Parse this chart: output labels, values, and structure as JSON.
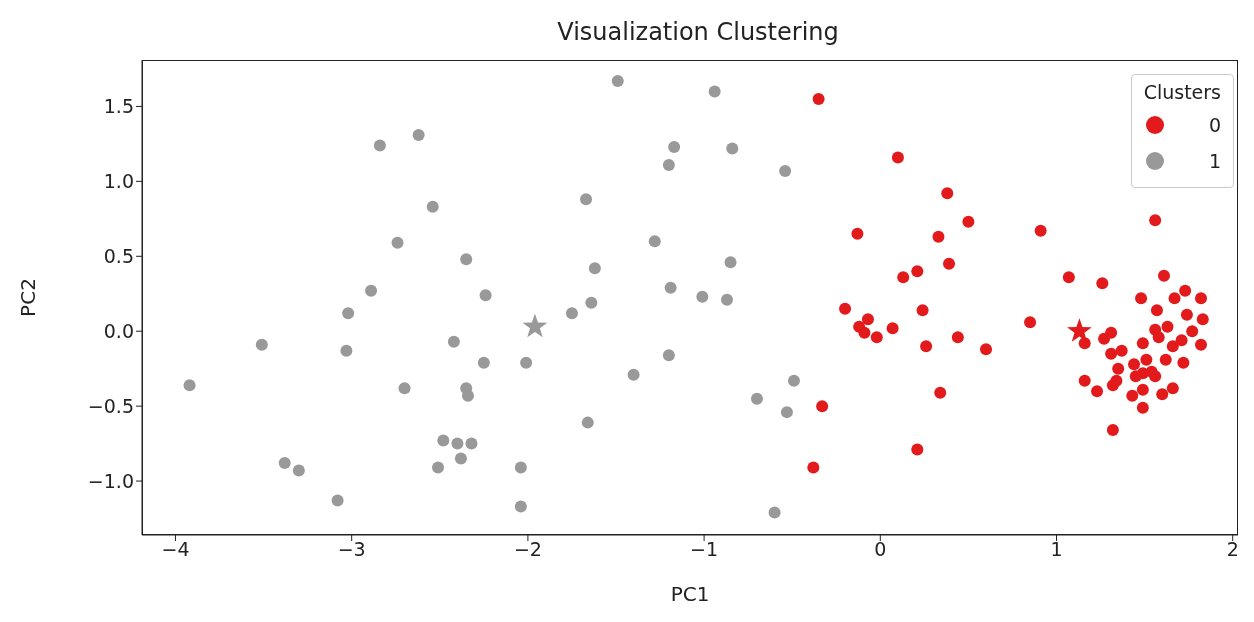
{
  "chart_data": {
    "type": "scatter",
    "title": "Visualization Clustering",
    "xlabel": "PC1",
    "ylabel": "PC2",
    "legend_title": "Clusters",
    "legend": "top right",
    "grid": false,
    "marker": "circle",
    "xlim": [
      -4.19,
      2.03
    ],
    "xticks": [
      {
        "value": -4,
        "label": "−4"
      },
      {
        "value": -3,
        "label": "−3"
      },
      {
        "value": -2,
        "label": "−2"
      },
      {
        "value": -1,
        "label": "−1"
      },
      0,
      1,
      2
    ],
    "ylim": [
      -1.36,
      1.81
    ],
    "yticks": [
      {
        "value": -1,
        "label": "−1.0"
      },
      {
        "value": -0.5,
        "label": "−0.5"
      },
      {
        "value": 0,
        "label": "0.0"
      },
      0.5,
      {
        "value": 1,
        "label": "1.0"
      },
      1.5
    ],
    "series": [
      {
        "name": "0",
        "color": "#e31a1c",
        "x": [
          -0.35,
          -0.33,
          -0.38,
          0.1,
          0.38,
          0.5,
          -0.13,
          0.33,
          0.91,
          1.56,
          0.39,
          0.21,
          0.13,
          1.07,
          1.26,
          1.61,
          -0.2,
          0.24,
          -0.07,
          -0.12,
          -0.09,
          -0.02,
          0.07,
          0.85,
          0.26,
          0.44,
          0.6,
          0.34,
          0.21,
          1.73,
          1.67,
          1.82,
          1.48,
          1.57,
          1.74,
          1.83,
          1.77,
          1.63,
          1.56,
          1.31,
          1.27,
          1.16,
          1.37,
          1.31,
          1.49,
          1.71,
          1.66,
          1.82,
          1.58,
          1.62,
          1.44,
          1.51,
          1.54,
          1.49,
          1.56,
          1.45,
          1.72,
          1.35,
          1.34,
          1.16,
          1.32,
          1.23,
          1.49,
          1.43,
          1.6,
          1.66,
          1.49,
          1.32
        ],
        "values": [
          1.55,
          -0.5,
          -0.91,
          1.16,
          0.92,
          0.73,
          0.65,
          0.63,
          0.67,
          0.74,
          0.45,
          0.4,
          0.36,
          0.36,
          0.32,
          0.37,
          0.15,
          0.14,
          0.08,
          0.03,
          -0.01,
          -0.04,
          0.02,
          0.06,
          -0.1,
          -0.04,
          -0.12,
          -0.41,
          -0.79,
          0.27,
          0.22,
          0.22,
          0.22,
          0.14,
          0.11,
          0.08,
          0.0,
          0.03,
          0.01,
          -0.01,
          -0.05,
          -0.08,
          -0.13,
          -0.15,
          -0.08,
          -0.06,
          -0.1,
          -0.09,
          -0.04,
          -0.19,
          -0.22,
          -0.19,
          -0.27,
          -0.28,
          -0.3,
          -0.3,
          -0.21,
          -0.25,
          -0.33,
          -0.33,
          -0.36,
          -0.4,
          -0.39,
          -0.43,
          -0.42,
          -0.38,
          -0.51,
          -0.66
        ]
      },
      {
        "name": "1",
        "color": "#999999",
        "x": [
          -3.92,
          -3.51,
          -3.38,
          -3.3,
          -3.08,
          -3.02,
          -3.03,
          -2.89,
          -2.84,
          -2.74,
          -2.7,
          -2.62,
          -2.54,
          -2.51,
          -2.48,
          -2.42,
          -2.4,
          -2.38,
          -2.35,
          -2.34,
          -2.35,
          -2.32,
          -2.25,
          -2.24,
          -2.04,
          -2.04,
          -2.01,
          -1.49,
          -0.94,
          -1.17,
          -0.84,
          -1.2,
          -0.54,
          -1.67,
          -1.28,
          -0.85,
          -1.62,
          -1.19,
          -1.01,
          -0.87,
          -1.64,
          -1.75,
          -1.2,
          -1.4,
          -0.49,
          -0.7,
          -0.53,
          -1.66,
          -0.6
        ],
        "values": [
          -0.36,
          -0.09,
          -0.88,
          -0.93,
          -1.13,
          0.12,
          -0.13,
          0.27,
          1.24,
          0.59,
          -0.38,
          1.31,
          0.83,
          -0.91,
          -0.73,
          -0.07,
          -0.75,
          -0.85,
          -0.38,
          -0.43,
          0.48,
          -0.75,
          -0.21,
          0.24,
          -0.91,
          -1.17,
          -0.21,
          1.67,
          1.6,
          1.23,
          1.22,
          1.11,
          1.07,
          0.88,
          0.6,
          0.46,
          0.42,
          0.29,
          0.23,
          0.21,
          0.19,
          0.12,
          -0.16,
          -0.29,
          -0.33,
          -0.45,
          -0.54,
          -0.61,
          -1.21
        ]
      },
      {
        "color": "#e31a1c",
        "marker": "star",
        "x": [
          1.13
        ],
        "values": [
          0.0
        ]
      },
      {
        "color": "#999999",
        "marker": "star",
        "x": [
          -1.96
        ],
        "values": [
          0.03
        ]
      }
    ]
  }
}
